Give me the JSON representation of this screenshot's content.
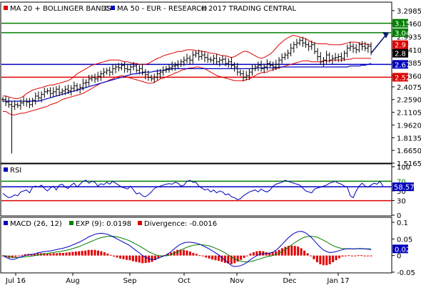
{
  "chart_data": [
    {
      "type": "candlestick",
      "panel": "price",
      "legend": [
        {
          "label": "MA 20 + BOLLINGER BANDS",
          "color": "#e00000"
        },
        {
          "label": "MA 50 - EUR - RESEARCH",
          "color": "#0000c0"
        },
        {
          "label": "2017 TRADING CENTRAL",
          "color": "#000000",
          "prefix": "©"
        }
      ],
      "ylim": [
        1.5165,
        3.38
      ],
      "ticks": [
        "3.2985",
        "3.1460",
        "2.9935",
        "2.8410",
        "2.6885",
        "2.5360",
        "2.4075",
        "2.2590",
        "2.1105",
        "1.9620",
        "1.8135",
        "1.6650",
        "1.5165"
      ],
      "tick_values": [
        3.2985,
        3.146,
        2.9935,
        2.841,
        2.6885,
        2.536,
        2.4075,
        2.259,
        2.1105,
        1.962,
        1.8135,
        1.665,
        1.5165
      ],
      "levels": [
        {
          "label": "3.15",
          "value": 3.15,
          "color": "#008000",
          "line": true
        },
        {
          "label": "3.04",
          "value": 3.04,
          "color": "#008000",
          "line": true
        },
        {
          "label": "2.9",
          "value": 2.9,
          "color": "#e00000",
          "line": false
        },
        {
          "label": "2.8",
          "value": 2.8,
          "color": "#000000",
          "line": false
        },
        {
          "label": "2.67",
          "value": 2.67,
          "color": "#0000c0",
          "line": true
        },
        {
          "label": "2.52",
          "value": 2.52,
          "color": "#e00000",
          "line": true
        }
      ],
      "price_close": [
        2.26,
        2.23,
        2.2,
        2.18,
        2.2,
        2.19,
        2.22,
        2.24,
        2.23,
        2.2,
        2.25,
        2.3,
        2.28,
        2.32,
        2.35,
        2.36,
        2.33,
        2.35,
        2.38,
        2.34,
        2.36,
        2.38,
        2.36,
        2.39,
        2.42,
        2.38,
        2.4,
        2.45,
        2.46,
        2.5,
        2.52,
        2.5,
        2.53,
        2.56,
        2.58,
        2.6,
        2.58,
        2.62,
        2.64,
        2.63,
        2.66,
        2.62,
        2.61,
        2.64,
        2.65,
        2.6,
        2.62,
        2.58,
        2.55,
        2.52,
        2.5,
        2.52,
        2.56,
        2.58,
        2.6,
        2.62,
        2.63,
        2.65,
        2.66,
        2.67,
        2.7,
        2.72,
        2.74,
        2.72,
        2.78,
        2.8,
        2.76,
        2.78,
        2.75,
        2.73,
        2.72,
        2.74,
        2.7,
        2.72,
        2.73,
        2.68,
        2.7,
        2.66,
        2.64,
        2.58,
        2.56,
        2.52,
        2.54,
        2.58,
        2.62,
        2.64,
        2.66,
        2.62,
        2.64,
        2.68,
        2.66,
        2.64,
        2.67,
        2.72,
        2.75,
        2.78,
        2.8,
        2.86,
        2.9,
        2.92,
        2.95,
        2.92,
        2.9,
        2.88,
        2.9,
        2.82,
        2.76,
        2.7,
        2.72,
        2.78,
        2.72,
        2.74,
        2.75,
        2.76,
        2.74,
        2.8,
        2.86,
        2.88,
        2.86,
        2.84,
        2.9,
        2.88,
        2.86,
        2.88,
        2.82
      ],
      "price_low_spike": {
        "index": 3,
        "value": 1.63
      },
      "bb_upper": [
        2.3,
        2.3,
        2.29,
        2.28,
        2.27,
        2.27,
        2.28,
        2.3,
        2.33,
        2.35,
        2.37,
        2.38,
        2.39,
        2.4,
        2.41,
        2.42,
        2.43,
        2.43,
        2.44,
        2.45,
        2.46,
        2.47,
        2.48,
        2.5,
        2.53,
        2.56,
        2.58,
        2.6,
        2.62,
        2.64,
        2.66,
        2.67,
        2.68,
        2.69,
        2.7,
        2.71,
        2.72,
        2.72,
        2.72,
        2.72,
        2.71,
        2.7,
        2.7,
        2.69,
        2.68,
        2.68,
        2.67,
        2.67,
        2.67,
        2.68,
        2.7,
        2.72,
        2.74,
        2.75,
        2.77,
        2.78,
        2.79,
        2.8,
        2.81,
        2.82,
        2.82,
        2.83,
        2.84,
        2.84,
        2.84,
        2.83,
        2.83,
        2.82,
        2.82,
        2.81,
        2.8,
        2.8,
        2.79,
        2.78,
        2.77,
        2.77,
        2.76,
        2.75,
        2.76,
        2.78,
        2.8,
        2.82,
        2.82,
        2.81,
        2.79,
        2.77,
        2.75,
        2.74,
        2.75,
        2.77,
        2.79,
        2.82,
        2.86,
        2.9,
        2.93,
        2.96,
        2.98,
        3.0,
        3.01,
        3.0,
        2.99,
        2.98,
        2.97,
        2.95,
        2.93,
        2.92,
        2.91,
        2.91,
        2.91,
        2.91,
        2.9,
        2.9,
        2.9,
        2.9,
        2.9,
        2.91,
        2.92,
        2.93,
        2.93,
        2.93,
        2.92,
        2.91,
        2.91,
        2.9,
        2.9
      ],
      "bb_lower": [
        2.12,
        2.12,
        2.1,
        2.08,
        2.08,
        2.09,
        2.1,
        2.1,
        2.11,
        2.12,
        2.13,
        2.14,
        2.15,
        2.16,
        2.17,
        2.18,
        2.2,
        2.21,
        2.22,
        2.24,
        2.26,
        2.27,
        2.28,
        2.29,
        2.3,
        2.31,
        2.32,
        2.33,
        2.35,
        2.37,
        2.39,
        2.41,
        2.43,
        2.45,
        2.46,
        2.47,
        2.49,
        2.5,
        2.52,
        2.53,
        2.54,
        2.53,
        2.52,
        2.51,
        2.5,
        2.49,
        2.48,
        2.47,
        2.46,
        2.45,
        2.45,
        2.46,
        2.48,
        2.5,
        2.51,
        2.52,
        2.54,
        2.55,
        2.57,
        2.58,
        2.6,
        2.61,
        2.62,
        2.63,
        2.63,
        2.64,
        2.64,
        2.63,
        2.62,
        2.6,
        2.58,
        2.56,
        2.54,
        2.53,
        2.52,
        2.51,
        2.5,
        2.49,
        2.48,
        2.48,
        2.48,
        2.48,
        2.49,
        2.5,
        2.52,
        2.54,
        2.56,
        2.57,
        2.58,
        2.58,
        2.6,
        2.61,
        2.62,
        2.63,
        2.64,
        2.65,
        2.66,
        2.67,
        2.68,
        2.69,
        2.7,
        2.71,
        2.71,
        2.71,
        2.7,
        2.7,
        2.7,
        2.7,
        2.71,
        2.71,
        2.71,
        2.72,
        2.72,
        2.72,
        2.72,
        2.72,
        2.73,
        2.73,
        2.74,
        2.74,
        2.74,
        2.74,
        2.74,
        2.74,
        2.74
      ],
      "ma50": [
        2.24,
        2.24,
        2.24,
        2.24,
        2.24,
        2.24,
        2.24,
        2.24,
        2.24,
        2.24,
        2.24,
        2.24,
        2.24,
        2.25,
        2.26,
        2.27,
        2.28,
        2.29,
        2.3,
        2.31,
        2.32,
        2.33,
        2.34,
        2.35,
        2.36,
        2.37,
        2.38,
        2.39,
        2.4,
        2.41,
        2.42,
        2.43,
        2.44,
        2.45,
        2.46,
        2.47,
        2.48,
        2.49,
        2.5,
        2.51,
        2.52,
        2.53,
        2.54,
        2.55,
        2.56,
        2.56,
        2.57,
        2.57,
        2.58,
        2.58,
        2.58,
        2.59,
        2.59,
        2.6,
        2.6,
        2.61,
        2.61,
        2.62,
        2.62,
        2.62,
        2.62,
        2.62,
        2.62,
        2.62,
        2.62,
        2.62,
        2.62,
        2.62,
        2.62,
        2.62,
        2.62,
        2.62,
        2.62,
        2.62,
        2.62,
        2.62,
        2.62,
        2.62,
        2.62,
        2.62,
        2.62,
        2.62,
        2.62,
        2.62,
        2.62,
        2.62,
        2.63,
        2.63,
        2.63,
        2.63,
        2.63,
        2.63,
        2.63,
        2.64,
        2.64,
        2.64,
        2.64,
        2.64,
        2.64,
        2.64,
        2.64,
        2.64,
        2.64,
        2.64,
        2.64,
        2.64,
        2.64,
        2.64,
        2.64,
        2.64,
        2.64,
        2.64,
        2.64,
        2.64,
        2.64,
        2.64,
        2.64,
        2.65,
        2.65,
        2.65,
        2.65,
        2.66,
        2.66,
        2.67,
        2.68
      ],
      "forecast_arrow": {
        "from": 2.8,
        "to": 3.04
      }
    },
    {
      "type": "line",
      "panel": "rsi",
      "label": "RSI",
      "ylim": [
        0,
        100
      ],
      "ticks": [
        "100",
        "50",
        "30",
        "0"
      ],
      "tick_values": [
        100,
        50,
        30,
        0
      ],
      "levels": [
        {
          "label": "70",
          "value": 70,
          "color": "#008000"
        },
        {
          "label": "58.57",
          "value": 58.57,
          "color": "#0000c0"
        },
        {
          "label": "30",
          "value": 30,
          "color": "#e00000"
        }
      ],
      "values": [
        45,
        40,
        36,
        38,
        42,
        40,
        48,
        50,
        52,
        46,
        58,
        60,
        58,
        62,
        55,
        50,
        56,
        60,
        52,
        62,
        64,
        58,
        55,
        62,
        66,
        58,
        64,
        70,
        72,
        66,
        70,
        68,
        60,
        65,
        63,
        68,
        64,
        70,
        66,
        62,
        58,
        56,
        54,
        60,
        52,
        44,
        46,
        40,
        38,
        42,
        48,
        55,
        58,
        60,
        62,
        64,
        65,
        64,
        68,
        66,
        60,
        62,
        70,
        72,
        68,
        68,
        60,
        56,
        52,
        54,
        48,
        52,
        46,
        50,
        48,
        42,
        44,
        38,
        36,
        32,
        34,
        40,
        44,
        48,
        50,
        52,
        48,
        54,
        50,
        48,
        52,
        60,
        64,
        66,
        68,
        72,
        70,
        68,
        66,
        64,
        62,
        56,
        50,
        48,
        46,
        54,
        56,
        58,
        60,
        62,
        66,
        68,
        70,
        66,
        64,
        60,
        58,
        40,
        36,
        50,
        60,
        66,
        60,
        58,
        62,
        66,
        64,
        70,
        60
      ]
    },
    {
      "type": "bar+line",
      "panel": "macd",
      "legend": [
        {
          "label": "MACD (26, 12)",
          "color": "#0000c0"
        },
        {
          "label": "EXP (9): 0.0198",
          "color": "#008000"
        },
        {
          "label": "Divergence: -0.0016",
          "color": "#e00000"
        }
      ],
      "ylim": [
        -0.05,
        0.1
      ],
      "ticks": [
        "0.1",
        "0.05",
        "0",
        "-0.05"
      ],
      "tick_values": [
        0.1,
        0.05,
        0,
        -0.05
      ],
      "levels": [
        {
          "label": "0.02",
          "value": 0.02,
          "color": "#0000c0"
        }
      ],
      "macd": [
        0.0,
        -0.005,
        -0.01,
        -0.012,
        -0.01,
        -0.006,
        -0.003,
        0.0,
        0.002,
        0.003,
        0.005,
        0.008,
        0.01,
        0.012,
        0.013,
        0.014,
        0.016,
        0.018,
        0.02,
        0.022,
        0.025,
        0.028,
        0.032,
        0.036,
        0.04,
        0.045,
        0.05,
        0.056,
        0.06,
        0.064,
        0.066,
        0.067,
        0.066,
        0.064,
        0.06,
        0.055,
        0.05,
        0.045,
        0.04,
        0.035,
        0.03,
        0.022,
        0.015,
        0.008,
        0.0,
        -0.005,
        -0.01,
        -0.012,
        -0.011,
        -0.008,
        -0.004,
        0.0,
        0.005,
        0.012,
        0.02,
        0.028,
        0.034,
        0.038,
        0.04,
        0.04,
        0.039,
        0.037,
        0.034,
        0.03,
        0.025,
        0.02,
        0.014,
        0.008,
        0.002,
        -0.006,
        -0.014,
        -0.022,
        -0.03,
        -0.033,
        -0.032,
        -0.03,
        -0.026,
        -0.02,
        -0.012,
        -0.006,
        0.0,
        0.004,
        0.006,
        0.006,
        0.007,
        0.01,
        0.016,
        0.024,
        0.034,
        0.044,
        0.054,
        0.062,
        0.068,
        0.072,
        0.073,
        0.07,
        0.064,
        0.056,
        0.046,
        0.035,
        0.025,
        0.017,
        0.012,
        0.009,
        0.01,
        0.012,
        0.015,
        0.018,
        0.02,
        0.021,
        0.02,
        0.02,
        0.021,
        0.021,
        0.02,
        0.019,
        0.018
      ],
      "signal": [
        0.0,
        -0.001,
        -0.003,
        -0.005,
        -0.006,
        -0.006,
        -0.005,
        -0.004,
        -0.003,
        -0.002,
        0.0,
        0.001,
        0.003,
        0.005,
        0.006,
        0.008,
        0.009,
        0.011,
        0.012,
        0.014,
        0.016,
        0.018,
        0.021,
        0.024,
        0.027,
        0.031,
        0.035,
        0.039,
        0.043,
        0.047,
        0.051,
        0.054,
        0.056,
        0.058,
        0.058,
        0.058,
        0.056,
        0.054,
        0.051,
        0.048,
        0.044,
        0.039,
        0.034,
        0.029,
        0.023,
        0.017,
        0.011,
        0.007,
        0.003,
        0.0,
        -0.001,
        -0.001,
        0.0,
        0.003,
        0.007,
        0.011,
        0.016,
        0.021,
        0.025,
        0.028,
        0.031,
        0.032,
        0.033,
        0.032,
        0.031,
        0.029,
        0.026,
        0.022,
        0.018,
        0.013,
        0.008,
        0.002,
        -0.004,
        -0.01,
        -0.014,
        -0.017,
        -0.019,
        -0.019,
        -0.018,
        -0.016,
        -0.013,
        -0.01,
        -0.007,
        -0.004,
        -0.002,
        0.0,
        0.003,
        0.007,
        0.012,
        0.018,
        0.025,
        0.032,
        0.039,
        0.045,
        0.051,
        0.055,
        0.057,
        0.058,
        0.057,
        0.055,
        0.051,
        0.046,
        0.041,
        0.035,
        0.03,
        0.026,
        0.023,
        0.021,
        0.02,
        0.02,
        0.02,
        0.02,
        0.02,
        0.02,
        0.02,
        0.02,
        0.0198
      ]
    }
  ],
  "x_axis": {
    "months": [
      "Jul 16",
      "Aug",
      "Sep",
      "Oct",
      "Nov",
      "Dec",
      "Jan 17"
    ]
  }
}
